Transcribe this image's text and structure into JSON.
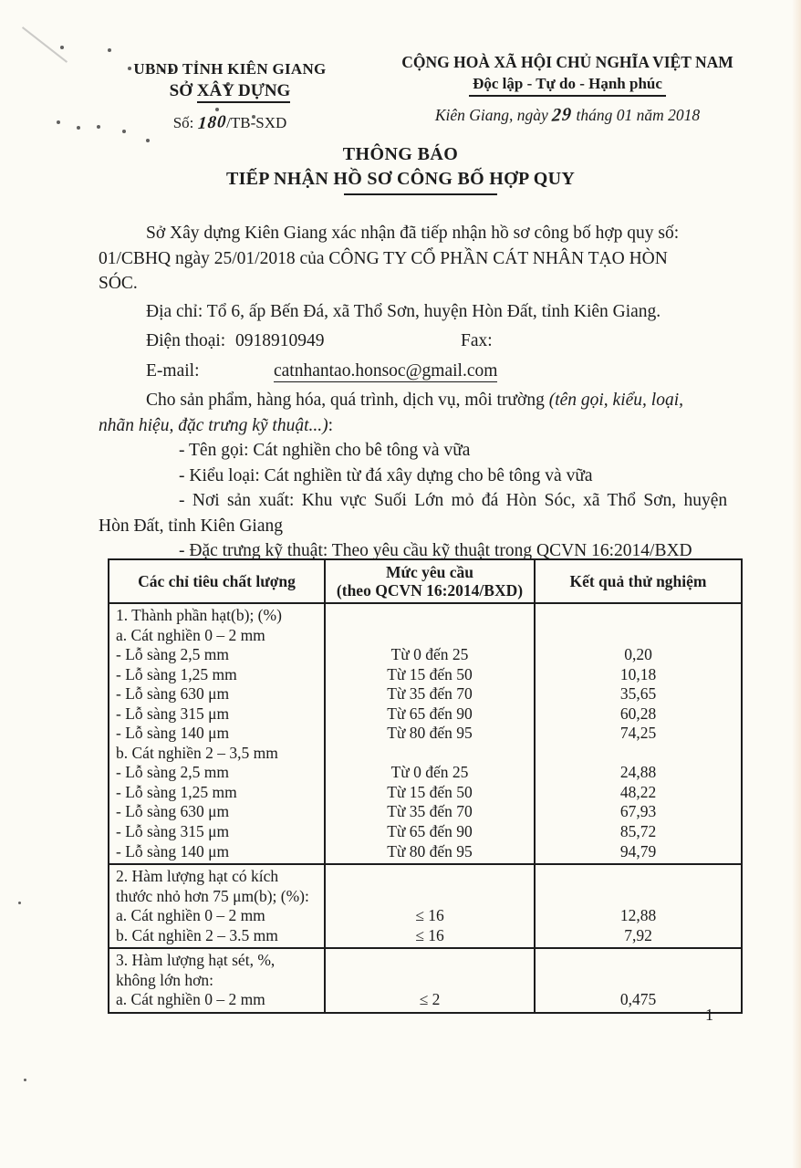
{
  "document": {
    "header_left": {
      "org_parent": "UBND TỈNH KIÊN GIANG",
      "org_prefix": "SỞ ",
      "org_name": "XÂY DỰNG",
      "number_label": "Số:",
      "number_value": "180",
      "number_suffix": "/TB-SXD"
    },
    "header_right": {
      "national_line": "CỘNG HOÀ XÃ HỘI CHỦ NGHĨA VIỆT NAM",
      "motto_line": "Độc lập - Tự do - Hạnh phúc",
      "date_prefix": "Kiên Giang, ngày",
      "date_day": "29",
      "date_suffix": " tháng 01 năm 2018"
    },
    "title": {
      "line1": "THÔNG BÁO",
      "line2": "TIẾP NHẬN HỒ SƠ CÔNG BỐ HỢP QUY"
    },
    "body": {
      "p1_line1": "Sở Xây dựng Kiên Giang xác nhận đã tiếp nhận hồ sơ công bố hợp quy số:",
      "p1_line2": "01/CBHQ  ngày 25/01/2018 của CÔNG TY CỔ PHẦN CÁT NHÂN TẠO HÒN",
      "p1_line3": "SÓC.",
      "address_line": "Địa chỉ: Tổ 6, ấp Bến Đá, xã Thổ Sơn, huyện Hòn Đất, tỉnh Kiên Giang.",
      "phone_label": "Điện thoại:",
      "phone_value": "0918910949",
      "fax_label": "Fax:",
      "email_label": "E-mail:",
      "email_value": "catnhantao.honsoc@gmail.com",
      "p2_normal": "Cho sản phẩm, hàng hóa, quá trình, dịch vụ, môi trường ",
      "p2_italic_1": "(tên gọi, kiểu, loại,",
      "p2_italic_2": "nhãn hiệu, đặc trưng kỹ thuật...)",
      "p2_colon": ":",
      "list": [
        "- Tên gọi: Cát nghiền cho bê tông và vữa",
        "- Kiểu loại: Cát nghiền từ đá xây dựng cho bê tông và vữa",
        "- Nơi sản xuất: Khu vực Suối Lớn mỏ đá Hòn Sóc, xã Thổ Sơn, huyện",
        "Hòn Đất, tỉnh Kiên Giang",
        "- Đặc trưng kỹ thuật: Theo yêu cầu kỹ thuật trong QCVN 16:2014/BXD"
      ]
    },
    "table": {
      "header_col1": "Các chỉ tiêu chất lượng",
      "header_col2_line1": "Mức yêu cầu",
      "header_col2_line2": "(theo QCVN 16:2014/BXD)",
      "header_col3": "Kết quả thử nghiệm",
      "sections": [
        {
          "rows": [
            [
              "1. Thành phần hạt(b); (%)",
              "",
              ""
            ],
            [
              "a. Cát nghiền 0 – 2 mm",
              "",
              ""
            ],
            [
              "- Lỗ sàng 2,5 mm",
              "Từ 0 đến 25",
              "0,20"
            ],
            [
              "- Lỗ sàng 1,25 mm",
              "Từ 15 đến 50",
              "10,18"
            ],
            [
              "- Lỗ sàng 630 μm",
              "Từ 35 đến 70",
              "35,65"
            ],
            [
              "- Lỗ sàng 315 μm",
              "Từ 65 đến 90",
              "60,28"
            ],
            [
              "- Lỗ sàng 140 μm",
              "Từ 80 đến 95",
              "74,25"
            ],
            [
              "b. Cát nghiền 2 – 3,5 mm",
              "",
              ""
            ],
            [
              "- Lỗ sàng 2,5 mm",
              "Từ 0 đến 25",
              "24,88"
            ],
            [
              "- Lỗ sàng 1,25 mm",
              "Từ 15 đến 50",
              "48,22"
            ],
            [
              "- Lỗ sàng 630 μm",
              "Từ 35 đến 70",
              "67,93"
            ],
            [
              "- Lỗ sàng 315 μm",
              "Từ 65 đến 90",
              "85,72"
            ],
            [
              "- Lỗ sàng 140 μm",
              "Từ 80 đến 95",
              "94,79"
            ]
          ]
        },
        {
          "rows": [
            [
              "2. Hàm lượng hạt có kích",
              "",
              ""
            ],
            [
              "thước nhỏ hơn 75 μm(b); (%):",
              "",
              ""
            ],
            [
              "a. Cát nghiền 0 – 2 mm",
              "≤ 16",
              "12,88"
            ],
            [
              "b. Cát nghiền 2 – 3.5 mm",
              "≤ 16",
              "7,92"
            ]
          ]
        },
        {
          "rows": [
            [
              "3. Hàm lượng hạt sét, %,",
              "",
              ""
            ],
            [
              "không lớn hơn:",
              "",
              ""
            ],
            [
              "a. Cát nghiền 0 – 2 mm",
              "≤ 2",
              "0,475"
            ]
          ]
        }
      ]
    },
    "page_number": "1"
  }
}
